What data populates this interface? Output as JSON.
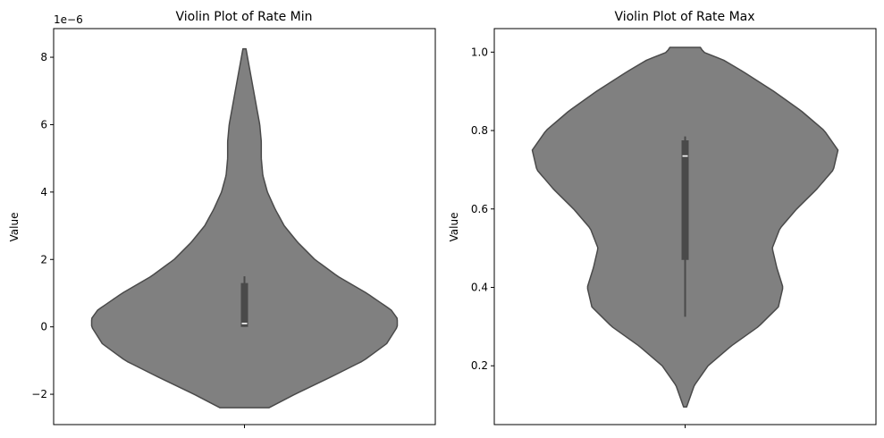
{
  "colors": {
    "violin_fill": "#808080",
    "violin_edge": "#4a4a4a",
    "box": "#4a4a4a",
    "median": "#ffffff",
    "axes": "#000000",
    "background": "#ffffff"
  },
  "chart_data": [
    {
      "type": "violin",
      "title": "Violin Plot of Rate Min",
      "xlabel": "",
      "ylabel": "Value",
      "y_offset_label": "1e−6",
      "ylim": [
        -2.9,
        8.85
      ],
      "yticks": [
        -2,
        0,
        2,
        4,
        6,
        8
      ],
      "ytick_labels": [
        "−2",
        "0",
        "2",
        "4",
        "6",
        "8"
      ],
      "extent": [
        -2.4,
        8.25
      ],
      "density_profile": [
        [
          -2.4,
          0.16
        ],
        [
          -2.0,
          0.33
        ],
        [
          -1.5,
          0.56
        ],
        [
          -1.0,
          0.78
        ],
        [
          -0.5,
          0.93
        ],
        [
          0.0,
          1.0
        ],
        [
          0.25,
          1.0
        ],
        [
          0.5,
          0.96
        ],
        [
          1.0,
          0.8
        ],
        [
          1.5,
          0.61
        ],
        [
          2.0,
          0.46
        ],
        [
          2.5,
          0.35
        ],
        [
          3.0,
          0.26
        ],
        [
          3.5,
          0.2
        ],
        [
          4.0,
          0.15
        ],
        [
          4.5,
          0.12
        ],
        [
          5.0,
          0.11
        ],
        [
          5.5,
          0.11
        ],
        [
          6.0,
          0.1
        ],
        [
          6.5,
          0.08
        ],
        [
          7.0,
          0.06
        ],
        [
          7.5,
          0.04
        ],
        [
          8.0,
          0.02
        ],
        [
          8.25,
          0.01
        ]
      ],
      "box": {
        "q1": 0.0,
        "median": 0.1,
        "q3": 1.3,
        "whisker_low": 0.0,
        "whisker_high": 1.5
      },
      "xticks": [
        ""
      ]
    },
    {
      "type": "violin",
      "title": "Violin Plot of Rate Max",
      "xlabel": "",
      "ylabel": "Value",
      "y_offset_label": "",
      "ylim": [
        0.05,
        1.06
      ],
      "yticks": [
        0.2,
        0.4,
        0.6,
        0.8,
        1.0
      ],
      "ytick_labels": [
        "0.2",
        "0.4",
        "0.6",
        "0.8",
        "1.0"
      ],
      "extent": [
        0.095,
        1.012
      ],
      "density_profile": [
        [
          0.095,
          0.01
        ],
        [
          0.15,
          0.06
        ],
        [
          0.2,
          0.15
        ],
        [
          0.25,
          0.3
        ],
        [
          0.3,
          0.48
        ],
        [
          0.35,
          0.61
        ],
        [
          0.4,
          0.64
        ],
        [
          0.45,
          0.6
        ],
        [
          0.5,
          0.57
        ],
        [
          0.55,
          0.62
        ],
        [
          0.6,
          0.73
        ],
        [
          0.65,
          0.86
        ],
        [
          0.7,
          0.97
        ],
        [
          0.75,
          1.0
        ],
        [
          0.8,
          0.91
        ],
        [
          0.85,
          0.76
        ],
        [
          0.9,
          0.58
        ],
        [
          0.95,
          0.38
        ],
        [
          0.98,
          0.25
        ],
        [
          1.0,
          0.12
        ],
        [
          1.012,
          0.1
        ]
      ],
      "box": {
        "q1": 0.47,
        "median": 0.735,
        "q3": 0.775,
        "whisker_low": 0.325,
        "whisker_high": 0.785
      },
      "xticks": [
        ""
      ]
    }
  ]
}
